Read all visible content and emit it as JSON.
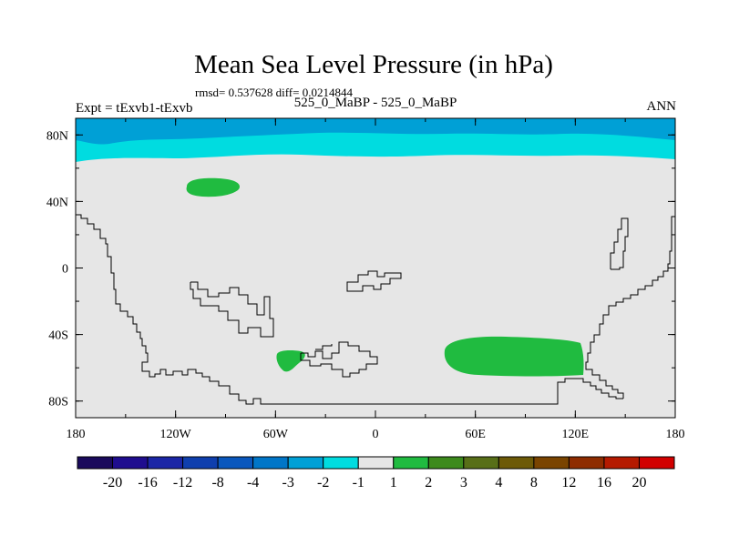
{
  "chart_data": {
    "type": "contour-map",
    "title": "Mean Sea Level Pressure (in hPa)",
    "stats_text": "rmsd= 0.537628 diff= 0.0214844",
    "left_label": "Expt = tExvb1-tExvb",
    "center_label": "525_0_MaBP - 525_0_MaBP",
    "right_label": "ANN",
    "xaxis": {
      "range": [
        -180,
        180
      ],
      "ticks": [
        -180,
        -120,
        -60,
        0,
        60,
        120,
        180
      ],
      "tick_labels": [
        "180",
        "120W",
        "60W",
        "0",
        "60E",
        "120E",
        "180"
      ]
    },
    "yaxis": {
      "range": [
        -90,
        90
      ],
      "ticks": [
        80,
        40,
        0,
        -40,
        -80
      ],
      "tick_labels": [
        "80N",
        "40N",
        "0",
        "40S",
        "80S"
      ]
    },
    "colorbar": {
      "levels": [
        "-20",
        "-16",
        "-12",
        "-8",
        "-4",
        "-3",
        "-2",
        "-1",
        "1",
        "2",
        "3",
        "4",
        "8",
        "12",
        "16",
        "20"
      ],
      "colors": [
        "#1a0a5c",
        "#1f0d8f",
        "#1b26a6",
        "#0f3fae",
        "#0a57bd",
        "#0076c8",
        "#00a0d6",
        "#00dce0",
        "#e6e6e6",
        "#20bb40",
        "#3d8a1c",
        "#586f18",
        "#6d5a08",
        "#7a4400",
        "#8e2c00",
        "#b51a00",
        "#d20000"
      ]
    },
    "field_summary": {
      "background_class": "-1 to 1",
      "north_polar_bands": [
        "-3 to -2",
        "-2 to -1"
      ],
      "positive_anomalies": [
        {
          "class": "1 to 2",
          "center_lon": -98,
          "center_lat": 48
        },
        {
          "class": "1 to 2",
          "center_lon": -50,
          "center_lat": -55
        },
        {
          "class": "1 to 2",
          "center_lon": 80,
          "center_lat": -53
        }
      ]
    }
  }
}
